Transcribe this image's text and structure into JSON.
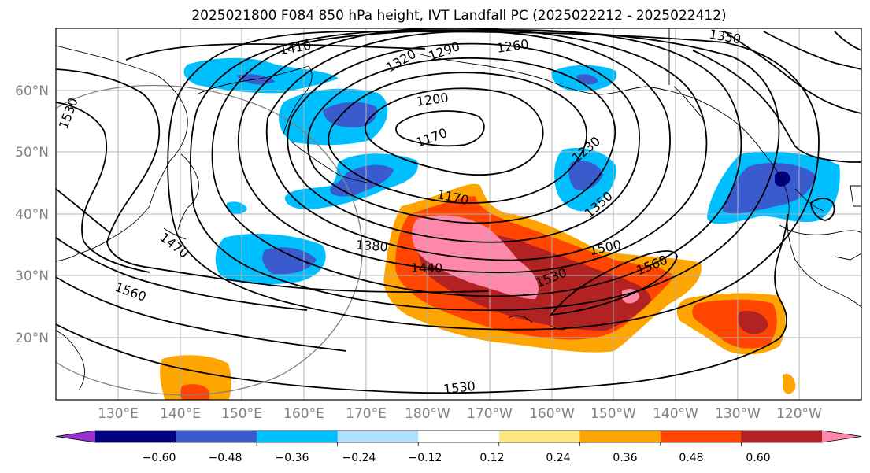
{
  "title": "2025021800 F084 850 hPa height, IVT Landfall PC (2025022212 - 2025022412)",
  "map": {
    "lon_labels": [
      "130°E",
      "140°E",
      "150°E",
      "160°E",
      "170°E",
      "180°W",
      "170°W",
      "160°W",
      "150°W",
      "140°W",
      "130°W",
      "120°W"
    ],
    "lat_labels": [
      "60°N",
      "50°N",
      "40°N",
      "30°N",
      "20°N"
    ],
    "gridlines": true
  },
  "contour_labels": [
    "1410",
    "1320",
    "1290",
    "1260",
    "1350",
    "1530",
    "1200",
    "1170",
    "1230",
    "1170",
    "1350",
    "1470",
    "1380",
    "1440",
    "1500",
    "1560",
    "1530",
    "1560",
    "1530"
  ],
  "colorbar": {
    "ticks": [
      "−0.60",
      "−0.48",
      "−0.36",
      "−0.24",
      "−0.12",
      "0.12",
      "0.24",
      "0.36",
      "0.48",
      "0.60"
    ],
    "colors": [
      "#9932cc",
      "#000080",
      "#3a5bcd",
      "#00bfff",
      "#b0e2ff",
      "#ffffff",
      "#ffe680",
      "#ffa500",
      "#ff4500",
      "#b22222",
      "#ff88aa"
    ]
  }
}
